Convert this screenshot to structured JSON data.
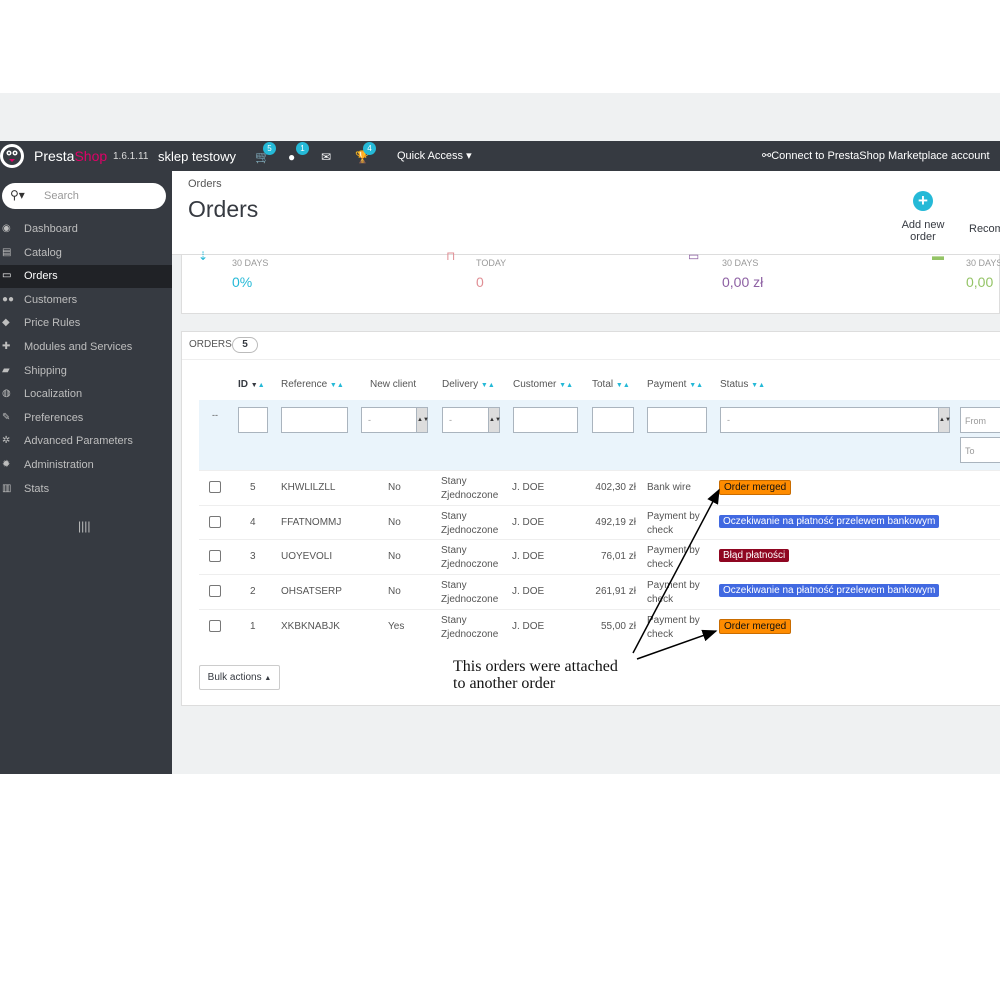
{
  "header": {
    "brand_part1": "Presta",
    "brand_part2": "Shop",
    "version": "1.6.1.11",
    "shop_name": "sklep testowy",
    "cart_count": "5",
    "customer_count": "1",
    "trophy_count": "4",
    "quick_access": "Quick Access",
    "connect": "Connect to PrestaShop Marketplace account"
  },
  "sidebar": {
    "search_placeholder": "Search",
    "items": [
      {
        "label": "Dashboard",
        "icon": "dashboard-icon"
      },
      {
        "label": "Catalog",
        "icon": "book-icon"
      },
      {
        "label": "Orders",
        "icon": "credit-card-icon",
        "active": true
      },
      {
        "label": "Customers",
        "icon": "users-icon"
      },
      {
        "label": "Price Rules",
        "icon": "tags-icon"
      },
      {
        "label": "Modules and Services",
        "icon": "puzzle-icon"
      },
      {
        "label": "Shipping",
        "icon": "truck-icon"
      },
      {
        "label": "Localization",
        "icon": "globe-icon"
      },
      {
        "label": "Preferences",
        "icon": "wrench-icon"
      },
      {
        "label": "Advanced Parameters",
        "icon": "cogs-icon"
      },
      {
        "label": "Administration",
        "icon": "gear-icon"
      },
      {
        "label": "Stats",
        "icon": "bar-chart-icon"
      }
    ]
  },
  "page": {
    "breadcrumb": "Orders",
    "title": "Orders",
    "add_new_order": "Add new order",
    "recommended": "Recom"
  },
  "kpis": [
    {
      "label": "30 DAYS",
      "value": "0%",
      "color": "#25b9d7"
    },
    {
      "label": "TODAY",
      "value": "0",
      "color": "#e08f95"
    },
    {
      "label": "30 DAYS",
      "value": "0,00 zł",
      "color": "#8d60a3"
    },
    {
      "label": "30 DAYS",
      "value": "0,00",
      "color": "#94c466"
    }
  ],
  "orders": {
    "title": "ORDERS",
    "count": "5",
    "columns": [
      "ID",
      "Reference",
      "New client",
      "Delivery",
      "Customer",
      "Total",
      "Payment",
      "Status"
    ],
    "filter": {
      "dash": "--",
      "select_default": "-",
      "date_from": "From",
      "date_to": "To"
    },
    "rows": [
      {
        "id": "5",
        "reference": "KHWLILZLL",
        "new_client": "No",
        "delivery": [
          "Stany",
          "Zjednoczone"
        ],
        "customer": "J. DOE",
        "total": "402,30 zł",
        "payment": [
          "Bank wire"
        ],
        "status": "Order merged",
        "status_color": "#ff8c00"
      },
      {
        "id": "4",
        "reference": "FFATNOMMJ",
        "new_client": "No",
        "delivery": [
          "Stany",
          "Zjednoczone"
        ],
        "customer": "J. DOE",
        "total": "492,19 zł",
        "payment": [
          "Payment by",
          "check"
        ],
        "status": "Oczekiwanie na płatność przelewem bankowym",
        "status_color": "#4169e1"
      },
      {
        "id": "3",
        "reference": "UOYEVOLI",
        "new_client": "No",
        "delivery": [
          "Stany",
          "Zjednoczone"
        ],
        "customer": "J. DOE",
        "total": "76,01 zł",
        "payment": [
          "Payment by",
          "check"
        ],
        "status": "Błąd płatności",
        "status_color": "#8f0621"
      },
      {
        "id": "2",
        "reference": "OHSATSERP",
        "new_client": "No",
        "delivery": [
          "Stany",
          "Zjednoczone"
        ],
        "customer": "J. DOE",
        "total": "261,91 zł",
        "payment": [
          "Payment by",
          "check"
        ],
        "status": "Oczekiwanie na płatność przelewem bankowym",
        "status_color": "#4169e1"
      },
      {
        "id": "1",
        "reference": "XKBKNABJK",
        "new_client": "Yes",
        "delivery": [
          "Stany",
          "Zjednoczone"
        ],
        "customer": "J. DOE",
        "total": "55,00 zł",
        "payment": [
          "Payment by",
          "check"
        ],
        "status": "Order merged",
        "status_color": "#ff8c00"
      }
    ],
    "bulk_actions": "Bulk actions"
  },
  "annotation": {
    "line1": "This orders were attached",
    "line2": "to another order"
  }
}
